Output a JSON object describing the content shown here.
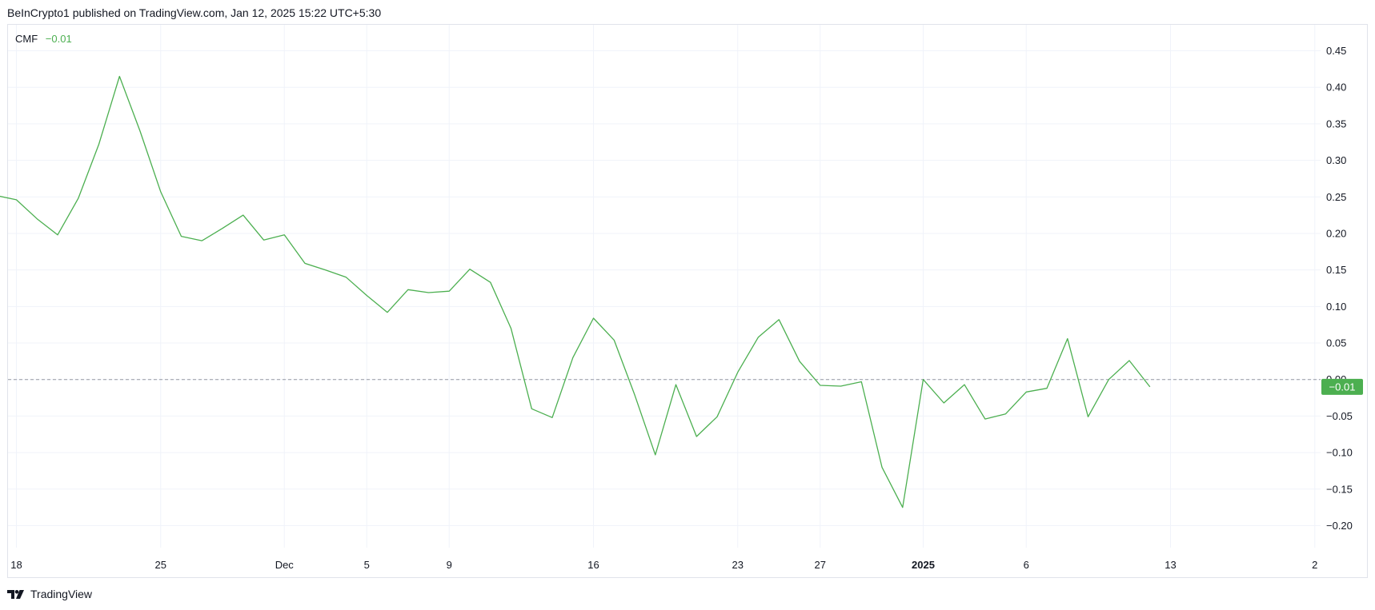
{
  "header": {
    "published_text": "BeInCrypto1 published on TradingView.com, Jan 12, 2025 15:22 UTC+5:30"
  },
  "legend": {
    "indicator": "CMF",
    "value": "−0.01"
  },
  "footer": {
    "brand": "TradingView"
  },
  "colors": {
    "line": "#4caf50",
    "badge": "#4caf50",
    "grid": "#f0f3fa",
    "zero_line": "#9598a1"
  },
  "chart_data": {
    "type": "line",
    "title": "",
    "xlabel": "",
    "ylabel": "",
    "ylim": [
      -0.2,
      0.45
    ],
    "y_ticks": [
      "0.45",
      "0.40",
      "0.35",
      "0.30",
      "0.25",
      "0.20",
      "0.15",
      "0.10",
      "0.05",
      "0.00",
      "−0.05",
      "−0.10",
      "−0.15",
      "−0.20"
    ],
    "y_tick_values": [
      0.45,
      0.4,
      0.35,
      0.3,
      0.25,
      0.2,
      0.15,
      0.1,
      0.05,
      0.0,
      -0.05,
      -0.1,
      -0.15,
      -0.2
    ],
    "x_ticks": [
      {
        "label": "18",
        "date": "2024-11-18",
        "bold": false
      },
      {
        "label": "25",
        "date": "2024-11-25",
        "bold": false
      },
      {
        "label": "Dec",
        "date": "2024-12-01",
        "bold": false
      },
      {
        "label": "5",
        "date": "2024-12-05",
        "bold": false
      },
      {
        "label": "9",
        "date": "2024-12-09",
        "bold": false
      },
      {
        "label": "16",
        "date": "2024-12-16",
        "bold": false
      },
      {
        "label": "23",
        "date": "2024-12-23",
        "bold": false
      },
      {
        "label": "27",
        "date": "2024-12-27",
        "bold": false
      },
      {
        "label": "2025",
        "date": "2025-01-01",
        "bold": true
      },
      {
        "label": "6",
        "date": "2025-01-06",
        "bold": false
      },
      {
        "label": "13",
        "date": "2025-01-13",
        "bold": false
      },
      {
        "label": "2",
        "date": "2025-01-20",
        "bold": false
      }
    ],
    "zero_line": 0,
    "last_value_label": "−0.01",
    "series": [
      {
        "name": "CMF",
        "points": [
          [
            "2024-11-17",
            0.252
          ],
          [
            "2024-11-18",
            0.246
          ],
          [
            "2024-11-19",
            0.22
          ],
          [
            "2024-11-20",
            0.198
          ],
          [
            "2024-11-21",
            0.248
          ],
          [
            "2024-11-22",
            0.322
          ],
          [
            "2024-11-23",
            0.415
          ],
          [
            "2024-11-24",
            0.34
          ],
          [
            "2024-11-25",
            0.257
          ],
          [
            "2024-11-26",
            0.196
          ],
          [
            "2024-11-27",
            0.19
          ],
          [
            "2024-11-28",
            0.207
          ],
          [
            "2024-11-29",
            0.225
          ],
          [
            "2024-11-30",
            0.191
          ],
          [
            "2024-12-01",
            0.198
          ],
          [
            "2024-12-02",
            0.159
          ],
          [
            "2024-12-03",
            0.15
          ],
          [
            "2024-12-04",
            0.14
          ],
          [
            "2024-12-05",
            0.115
          ],
          [
            "2024-12-06",
            0.092
          ],
          [
            "2024-12-07",
            0.123
          ],
          [
            "2024-12-08",
            0.119
          ],
          [
            "2024-12-09",
            0.121
          ],
          [
            "2024-12-10",
            0.151
          ],
          [
            "2024-12-11",
            0.133
          ],
          [
            "2024-12-12",
            0.07
          ],
          [
            "2024-12-13",
            -0.04
          ],
          [
            "2024-12-14",
            -0.052
          ],
          [
            "2024-12-15",
            0.03
          ],
          [
            "2024-12-16",
            0.084
          ],
          [
            "2024-12-17",
            0.054
          ],
          [
            "2024-12-18",
            -0.021
          ],
          [
            "2024-12-19",
            -0.103
          ],
          [
            "2024-12-20",
            -0.007
          ],
          [
            "2024-12-21",
            -0.078
          ],
          [
            "2024-12-22",
            -0.051
          ],
          [
            "2024-12-23",
            0.01
          ],
          [
            "2024-12-24",
            0.058
          ],
          [
            "2024-12-25",
            0.082
          ],
          [
            "2024-12-26",
            0.025
          ],
          [
            "2024-12-27",
            -0.008
          ],
          [
            "2024-12-28",
            -0.009
          ],
          [
            "2024-12-29",
            -0.003
          ],
          [
            "2024-12-30",
            -0.12
          ],
          [
            "2024-12-31",
            -0.175
          ],
          [
            "2025-01-01",
            0.0
          ],
          [
            "2025-01-02",
            -0.032
          ],
          [
            "2025-01-03",
            -0.007
          ],
          [
            "2025-01-04",
            -0.054
          ],
          [
            "2025-01-05",
            -0.047
          ],
          [
            "2025-01-06",
            -0.017
          ],
          [
            "2025-01-07",
            -0.012
          ],
          [
            "2025-01-08",
            0.056
          ],
          [
            "2025-01-09",
            -0.051
          ],
          [
            "2025-01-10",
            0.0
          ],
          [
            "2025-01-11",
            0.026
          ],
          [
            "2025-01-12",
            -0.01
          ]
        ]
      }
    ]
  }
}
